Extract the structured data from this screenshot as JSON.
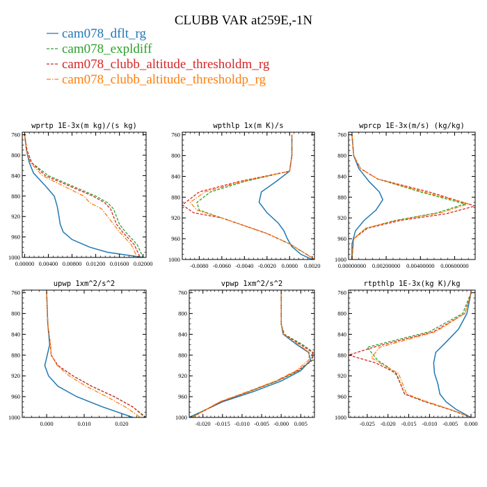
{
  "figure": {
    "title": "CLUBB VAR at259E,-1N"
  },
  "colors": {
    "cam078_dflt_rg": "#1f77b4",
    "cam078_expldiff": "#2ca02c",
    "cam078_clubb_altitude_thresholdm_rg": "#d62728",
    "cam078_clubb_altitude_thresholdp_rg": "#ff7f0e"
  },
  "legend": [
    {
      "name": "cam078_dflt_rg",
      "color": "#1f77b4",
      "dash": "solid"
    },
    {
      "name": "cam078_expldiff",
      "color": "#2ca02c",
      "dash": "dashed"
    },
    {
      "name": "cam078_clubb_altitude_thresholdm_rg",
      "color": "#d62728",
      "dash": "dashed"
    },
    {
      "name": "cam078_clubb_altitude_thresholdp_rg",
      "color": "#ff7f0e",
      "dash": "dashdot"
    }
  ],
  "chart_data": [
    {
      "type": "line",
      "title": "wprtp  1E-3x(m kg)/(s kg)",
      "xlim": [
        -0.0004,
        0.0205
      ],
      "ylim": [
        755,
        1000
      ],
      "y_inverted": true,
      "xticks": [
        0.0,
        0.004,
        0.008,
        0.012,
        0.016,
        0.02
      ],
      "xtick_labels": [
        "0.00000",
        "0.00400",
        "0.00800",
        "0.01200",
        "0.01600",
        "0.02000"
      ],
      "yticks": [
        760,
        800,
        840,
        880,
        920,
        960,
        1000
      ],
      "ytick_labels": [
        "760",
        "800",
        "840",
        "880",
        "920",
        "960",
        "1000"
      ],
      "series": [
        {
          "name": "cam078_dflt_rg",
          "x": [
            0.0,
            0.0003,
            0.0008,
            0.0015,
            0.0035,
            0.005,
            0.0055,
            0.0058,
            0.006,
            0.0065,
            0.008,
            0.011,
            0.014,
            0.02
          ],
          "y": [
            760,
            790,
            815,
            835,
            860,
            880,
            900,
            920,
            935,
            950,
            965,
            980,
            990,
            1000
          ]
        },
        {
          "name": "cam078_expldiff",
          "x": [
            0.0,
            0.0004,
            0.0012,
            0.004,
            0.008,
            0.012,
            0.014,
            0.015,
            0.0155,
            0.016,
            0.017,
            0.019,
            0.02
          ],
          "y": [
            760,
            790,
            815,
            840,
            860,
            880,
            893,
            905,
            920,
            935,
            950,
            975,
            1000
          ]
        },
        {
          "name": "cam078_clubb_altitude_thresholdm_rg",
          "x": [
            0.0,
            0.0004,
            0.0012,
            0.0035,
            0.0075,
            0.0115,
            0.0135,
            0.0145,
            0.015,
            0.0155,
            0.0165,
            0.0185,
            0.0195
          ],
          "y": [
            760,
            790,
            815,
            840,
            860,
            880,
            893,
            905,
            920,
            935,
            950,
            975,
            1000
          ]
        },
        {
          "name": "cam078_clubb_altitude_thresholdp_rg",
          "x": [
            0.0,
            0.0003,
            0.001,
            0.003,
            0.0065,
            0.01,
            0.011,
            0.013,
            0.014,
            0.015,
            0.016,
            0.018,
            0.019
          ],
          "y": [
            760,
            790,
            815,
            840,
            860,
            880,
            893,
            905,
            920,
            935,
            950,
            975,
            1000
          ]
        }
      ]
    },
    {
      "type": "line",
      "title": "wpthlp  1x(m K)/s",
      "xlim": [
        -0.0095,
        0.0022
      ],
      "ylim": [
        755,
        1000
      ],
      "y_inverted": true,
      "xticks": [
        -0.008,
        -0.006,
        -0.004,
        -0.002,
        0.0,
        0.002
      ],
      "xtick_labels": [
        "-0.0080",
        "-0.0060",
        "-0.0040",
        "-0.0020",
        "0.0000",
        "0.0020"
      ],
      "yticks": [
        760,
        800,
        840,
        880,
        920,
        960,
        1000
      ],
      "ytick_labels": [
        "760",
        "800",
        "840",
        "880",
        "920",
        "960",
        "1000"
      ],
      "series": [
        {
          "name": "cam078_dflt_rg",
          "x": [
            0.0002,
            0.0002,
            0.0,
            -0.0012,
            -0.0025,
            -0.0027,
            -0.002,
            -0.001,
            -0.0005,
            -0.0002,
            0.0002,
            0.001,
            0.002
          ],
          "y": [
            760,
            800,
            830,
            850,
            870,
            890,
            910,
            930,
            945,
            960,
            975,
            990,
            1000
          ]
        },
        {
          "name": "cam078_expldiff",
          "x": [
            0.0002,
            0.0002,
            0.0,
            -0.004,
            -0.007,
            -0.0082,
            -0.008,
            -0.006,
            -0.004,
            -0.002,
            0.0,
            0.0015,
            0.0022
          ],
          "y": [
            760,
            800,
            830,
            850,
            870,
            890,
            905,
            920,
            935,
            950,
            970,
            990,
            1000
          ]
        },
        {
          "name": "cam078_clubb_altitude_thresholdm_rg",
          "x": [
            0.0002,
            0.0002,
            0.0,
            -0.0045,
            -0.008,
            -0.0095,
            -0.0085,
            -0.006,
            -0.004,
            -0.002,
            0.0,
            0.0015,
            0.0022
          ],
          "y": [
            760,
            800,
            830,
            850,
            870,
            895,
            910,
            920,
            935,
            950,
            970,
            990,
            1000
          ]
        },
        {
          "name": "cam078_clubb_altitude_thresholdp_rg",
          "x": [
            0.0002,
            0.0002,
            0.0,
            -0.0042,
            -0.0075,
            -0.0088,
            -0.0082,
            -0.006,
            -0.004,
            -0.002,
            0.0,
            0.0015,
            0.0022
          ],
          "y": [
            760,
            800,
            830,
            850,
            870,
            890,
            905,
            920,
            935,
            950,
            970,
            990,
            1000
          ]
        }
      ]
    },
    {
      "type": "line",
      "title": "wprcp  1E-3x(m/s) (kg/kg)",
      "xlim": [
        -0.0002,
        0.0072
      ],
      "ylim": [
        755,
        1000
      ],
      "y_inverted": true,
      "xticks": [
        0.0,
        0.002,
        0.004,
        0.006
      ],
      "xtick_labels": [
        "0.00000000",
        "0.00200000",
        "0.00400000",
        "0.00600000"
      ],
      "yticks": [
        760,
        800,
        840,
        880,
        920,
        960,
        1000
      ],
      "ytick_labels": [
        "760",
        "800",
        "840",
        "880",
        "920",
        "960",
        "1000"
      ],
      "series": [
        {
          "name": "cam078_dflt_rg",
          "x": [
            0.0,
            0.0001,
            0.0004,
            0.001,
            0.0016,
            0.0018,
            0.0014,
            0.0007,
            0.0002,
            0.0,
            0.0
          ],
          "y": [
            760,
            800,
            825,
            850,
            870,
            885,
            905,
            925,
            945,
            970,
            1000
          ]
        },
        {
          "name": "cam078_expldiff",
          "x": [
            0.0,
            0.0001,
            0.0005,
            0.0015,
            0.004,
            0.0066,
            0.005,
            0.0025,
            0.0008,
            0.0001,
            0.0
          ],
          "y": [
            760,
            800,
            825,
            845,
            870,
            893,
            910,
            925,
            940,
            960,
            1000
          ]
        },
        {
          "name": "cam078_clubb_altitude_thresholdm_rg",
          "x": [
            0.0,
            0.0001,
            0.0005,
            0.0015,
            0.0045,
            0.0072,
            0.0055,
            0.0028,
            0.0009,
            0.0001,
            0.0
          ],
          "y": [
            760,
            800,
            825,
            845,
            870,
            897,
            912,
            925,
            940,
            960,
            1000
          ]
        },
        {
          "name": "cam078_clubb_altitude_thresholdp_rg",
          "x": [
            0.0,
            0.0001,
            0.0005,
            0.0015,
            0.0042,
            0.0068,
            0.0052,
            0.0026,
            0.0008,
            0.0001,
            0.0
          ],
          "y": [
            760,
            800,
            825,
            845,
            870,
            893,
            910,
            925,
            940,
            960,
            1000
          ]
        }
      ]
    },
    {
      "type": "line",
      "title": "upwp  1xm^2/s^2",
      "xlim": [
        -0.0065,
        0.0265
      ],
      "ylim": [
        755,
        1000
      ],
      "y_inverted": true,
      "xticks": [
        0.0,
        0.01,
        0.02
      ],
      "xtick_labels": [
        "0.000",
        "0.010",
        "0.020"
      ],
      "yticks": [
        760,
        800,
        840,
        880,
        920,
        960,
        1000
      ],
      "ytick_labels": [
        "760",
        "800",
        "840",
        "880",
        "920",
        "960",
        "1000"
      ],
      "series": [
        {
          "name": "cam078_dflt_rg",
          "x": [
            0.0,
            0.0003,
            0.0008,
            0.0,
            -0.0005,
            0.0005,
            0.003,
            0.008,
            0.015,
            0.023
          ],
          "y": [
            760,
            820,
            860,
            885,
            900,
            920,
            940,
            960,
            980,
            1000
          ]
        },
        {
          "name": "cam078_expldiff",
          "x": [
            0.0,
            0.0003,
            0.001,
            0.0012,
            0.003,
            0.007,
            0.012,
            0.018,
            0.023,
            0.0265
          ],
          "y": [
            760,
            820,
            860,
            880,
            900,
            920,
            940,
            960,
            980,
            1000
          ]
        },
        {
          "name": "cam078_clubb_altitude_thresholdm_rg",
          "x": [
            0.0,
            0.0003,
            0.001,
            0.0012,
            0.003,
            0.007,
            0.012,
            0.018,
            0.023,
            0.0262
          ],
          "y": [
            760,
            820,
            860,
            880,
            900,
            920,
            940,
            960,
            980,
            1000
          ]
        },
        {
          "name": "cam078_clubb_altitude_thresholdp_rg",
          "x": [
            0.0,
            0.0003,
            0.001,
            0.0012,
            0.0028,
            0.006,
            0.0105,
            0.016,
            0.021,
            0.025
          ],
          "y": [
            760,
            820,
            860,
            880,
            900,
            920,
            940,
            960,
            980,
            1000
          ]
        }
      ]
    },
    {
      "type": "line",
      "title": "vpwp  1xm^2/s^2",
      "xlim": [
        -0.0235,
        0.0085
      ],
      "ylim": [
        755,
        1000
      ],
      "y_inverted": true,
      "xticks": [
        -0.02,
        -0.015,
        -0.01,
        -0.005,
        0.0,
        0.005
      ],
      "xtick_labels": [
        "-0.020",
        "-0.015",
        "-0.010",
        "-0.005",
        "-0.000",
        "0.005"
      ],
      "yticks": [
        760,
        800,
        840,
        880,
        920,
        960,
        1000
      ],
      "ytick_labels": [
        "760",
        "800",
        "840",
        "880",
        "920",
        "960",
        "1000"
      ],
      "series": [
        {
          "name": "cam078_dflt_rg",
          "x": [
            0.0,
            0.0,
            0.0005,
            0.004,
            0.007,
            0.0075,
            0.005,
            0.0,
            -0.007,
            -0.015,
            -0.0235
          ],
          "y": [
            760,
            820,
            840,
            860,
            875,
            890,
            910,
            930,
            950,
            970,
            1000
          ]
        },
        {
          "name": "cam078_expldiff",
          "x": [
            0.0,
            0.0,
            0.0008,
            0.0055,
            0.0082,
            0.008,
            0.0045,
            -0.001,
            -0.008,
            -0.0155,
            -0.023
          ],
          "y": [
            760,
            820,
            840,
            860,
            875,
            890,
            910,
            930,
            950,
            970,
            1000
          ]
        },
        {
          "name": "cam078_clubb_altitude_thresholdm_rg",
          "x": [
            0.0,
            0.0,
            0.0007,
            0.005,
            0.008,
            0.0078,
            0.0042,
            -0.0012,
            -0.0082,
            -0.0155,
            -0.0228
          ],
          "y": [
            760,
            820,
            840,
            860,
            875,
            890,
            910,
            930,
            950,
            970,
            1000
          ]
        },
        {
          "name": "cam078_clubb_altitude_thresholdp_rg",
          "x": [
            0.0,
            0.0,
            0.0006,
            0.0045,
            0.0072,
            0.007,
            0.0038,
            -0.0015,
            -0.0085,
            -0.0158,
            -0.0228
          ],
          "y": [
            760,
            820,
            840,
            860,
            875,
            890,
            910,
            930,
            950,
            970,
            1000
          ]
        }
      ]
    },
    {
      "type": "line",
      "title": "rtpthlp  1E-3x(kg K)/kg",
      "xlim": [
        -0.0295,
        0.001
      ],
      "ylim": [
        755,
        1000
      ],
      "y_inverted": true,
      "xticks": [
        -0.025,
        -0.02,
        -0.015,
        -0.01,
        -0.005,
        0.0
      ],
      "xtick_labels": [
        "-0.025",
        "-0.020",
        "-0.015",
        "-0.010",
        "-0.005",
        "0.000"
      ],
      "yticks": [
        760,
        800,
        840,
        880,
        920,
        960,
        1000
      ],
      "ytick_labels": [
        "760",
        "800",
        "840",
        "880",
        "920",
        "960",
        "1000"
      ],
      "series": [
        {
          "name": "cam078_dflt_rg",
          "x": [
            0.0,
            -0.001,
            -0.003,
            -0.006,
            -0.0085,
            -0.009,
            -0.0088,
            -0.008,
            -0.0075,
            -0.006,
            -0.0035,
            0.0
          ],
          "y": [
            760,
            800,
            830,
            855,
            875,
            895,
            915,
            935,
            955,
            970,
            985,
            1000
          ]
        },
        {
          "name": "cam078_expldiff",
          "x": [
            0.0,
            -0.002,
            -0.01,
            -0.025,
            -0.0225,
            -0.02,
            -0.018,
            -0.017,
            -0.016,
            -0.011,
            -0.005,
            0.0
          ],
          "y": [
            760,
            800,
            835,
            865,
            890,
            903,
            918,
            935,
            955,
            970,
            985,
            1000
          ]
        },
        {
          "name": "cam078_clubb_altitude_thresholdm_rg",
          "x": [
            0.0,
            -0.0015,
            -0.009,
            -0.0235,
            -0.0295,
            -0.023,
            -0.018,
            -0.017,
            -0.016,
            -0.011,
            -0.005,
            0.0
          ],
          "y": [
            760,
            800,
            835,
            865,
            880,
            895,
            915,
            935,
            955,
            970,
            985,
            1000
          ]
        },
        {
          "name": "cam078_clubb_altitude_thresholdp_rg",
          "x": [
            0.0,
            -0.0015,
            -0.0085,
            -0.022,
            -0.024,
            -0.021,
            -0.0175,
            -0.0165,
            -0.0155,
            -0.0105,
            -0.0048,
            0.0
          ],
          "y": [
            760,
            800,
            835,
            865,
            885,
            900,
            915,
            935,
            955,
            970,
            985,
            1000
          ]
        }
      ]
    }
  ]
}
